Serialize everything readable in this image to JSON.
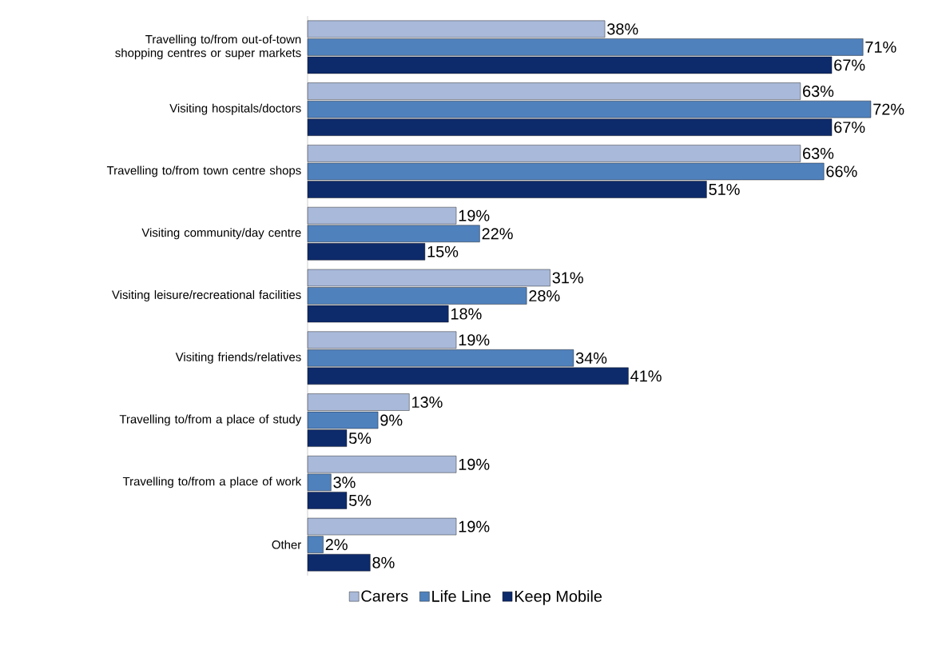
{
  "chart_data": {
    "type": "bar",
    "orientation": "horizontal",
    "categories": [
      "Travelling to/from out-of-town shopping centres or super markets",
      "Visiting hospitals/doctors",
      "Travelling to/from town centre shops",
      "Visiting community/day centre",
      "Visiting leisure/recreational facilities",
      "Visiting friends/relatives",
      "Travelling to/from a place of study",
      "Travelling to/from a place of work",
      "Other"
    ],
    "series": [
      {
        "name": "Carers",
        "color": "#a9b9d9",
        "values": [
          38,
          63,
          63,
          19,
          31,
          19,
          13,
          19,
          19
        ],
        "value_labels": [
          "38%",
          "63%",
          "63%",
          "19%",
          "31%",
          "19%",
          "13%",
          "19%",
          "19%"
        ]
      },
      {
        "name": "Life Line",
        "color": "#4f81bd",
        "values": [
          71,
          72,
          66,
          22,
          28,
          34,
          9,
          3,
          2
        ],
        "value_labels": [
          "71%",
          "72%",
          "66%",
          "22%",
          "28%",
          "34%",
          "9%",
          "3%",
          "2%"
        ]
      },
      {
        "name": "Keep Mobile",
        "color": "#0d2a6b",
        "values": [
          67,
          67,
          51,
          15,
          18,
          41,
          5,
          5,
          8
        ],
        "value_labels": [
          "67%",
          "67%",
          "51%",
          "15%",
          "18%",
          "41%",
          "5%",
          "5%",
          "8%"
        ]
      }
    ],
    "xlim": [
      0,
      72
    ],
    "tick_labels": "y",
    "legend": "bottom"
  }
}
